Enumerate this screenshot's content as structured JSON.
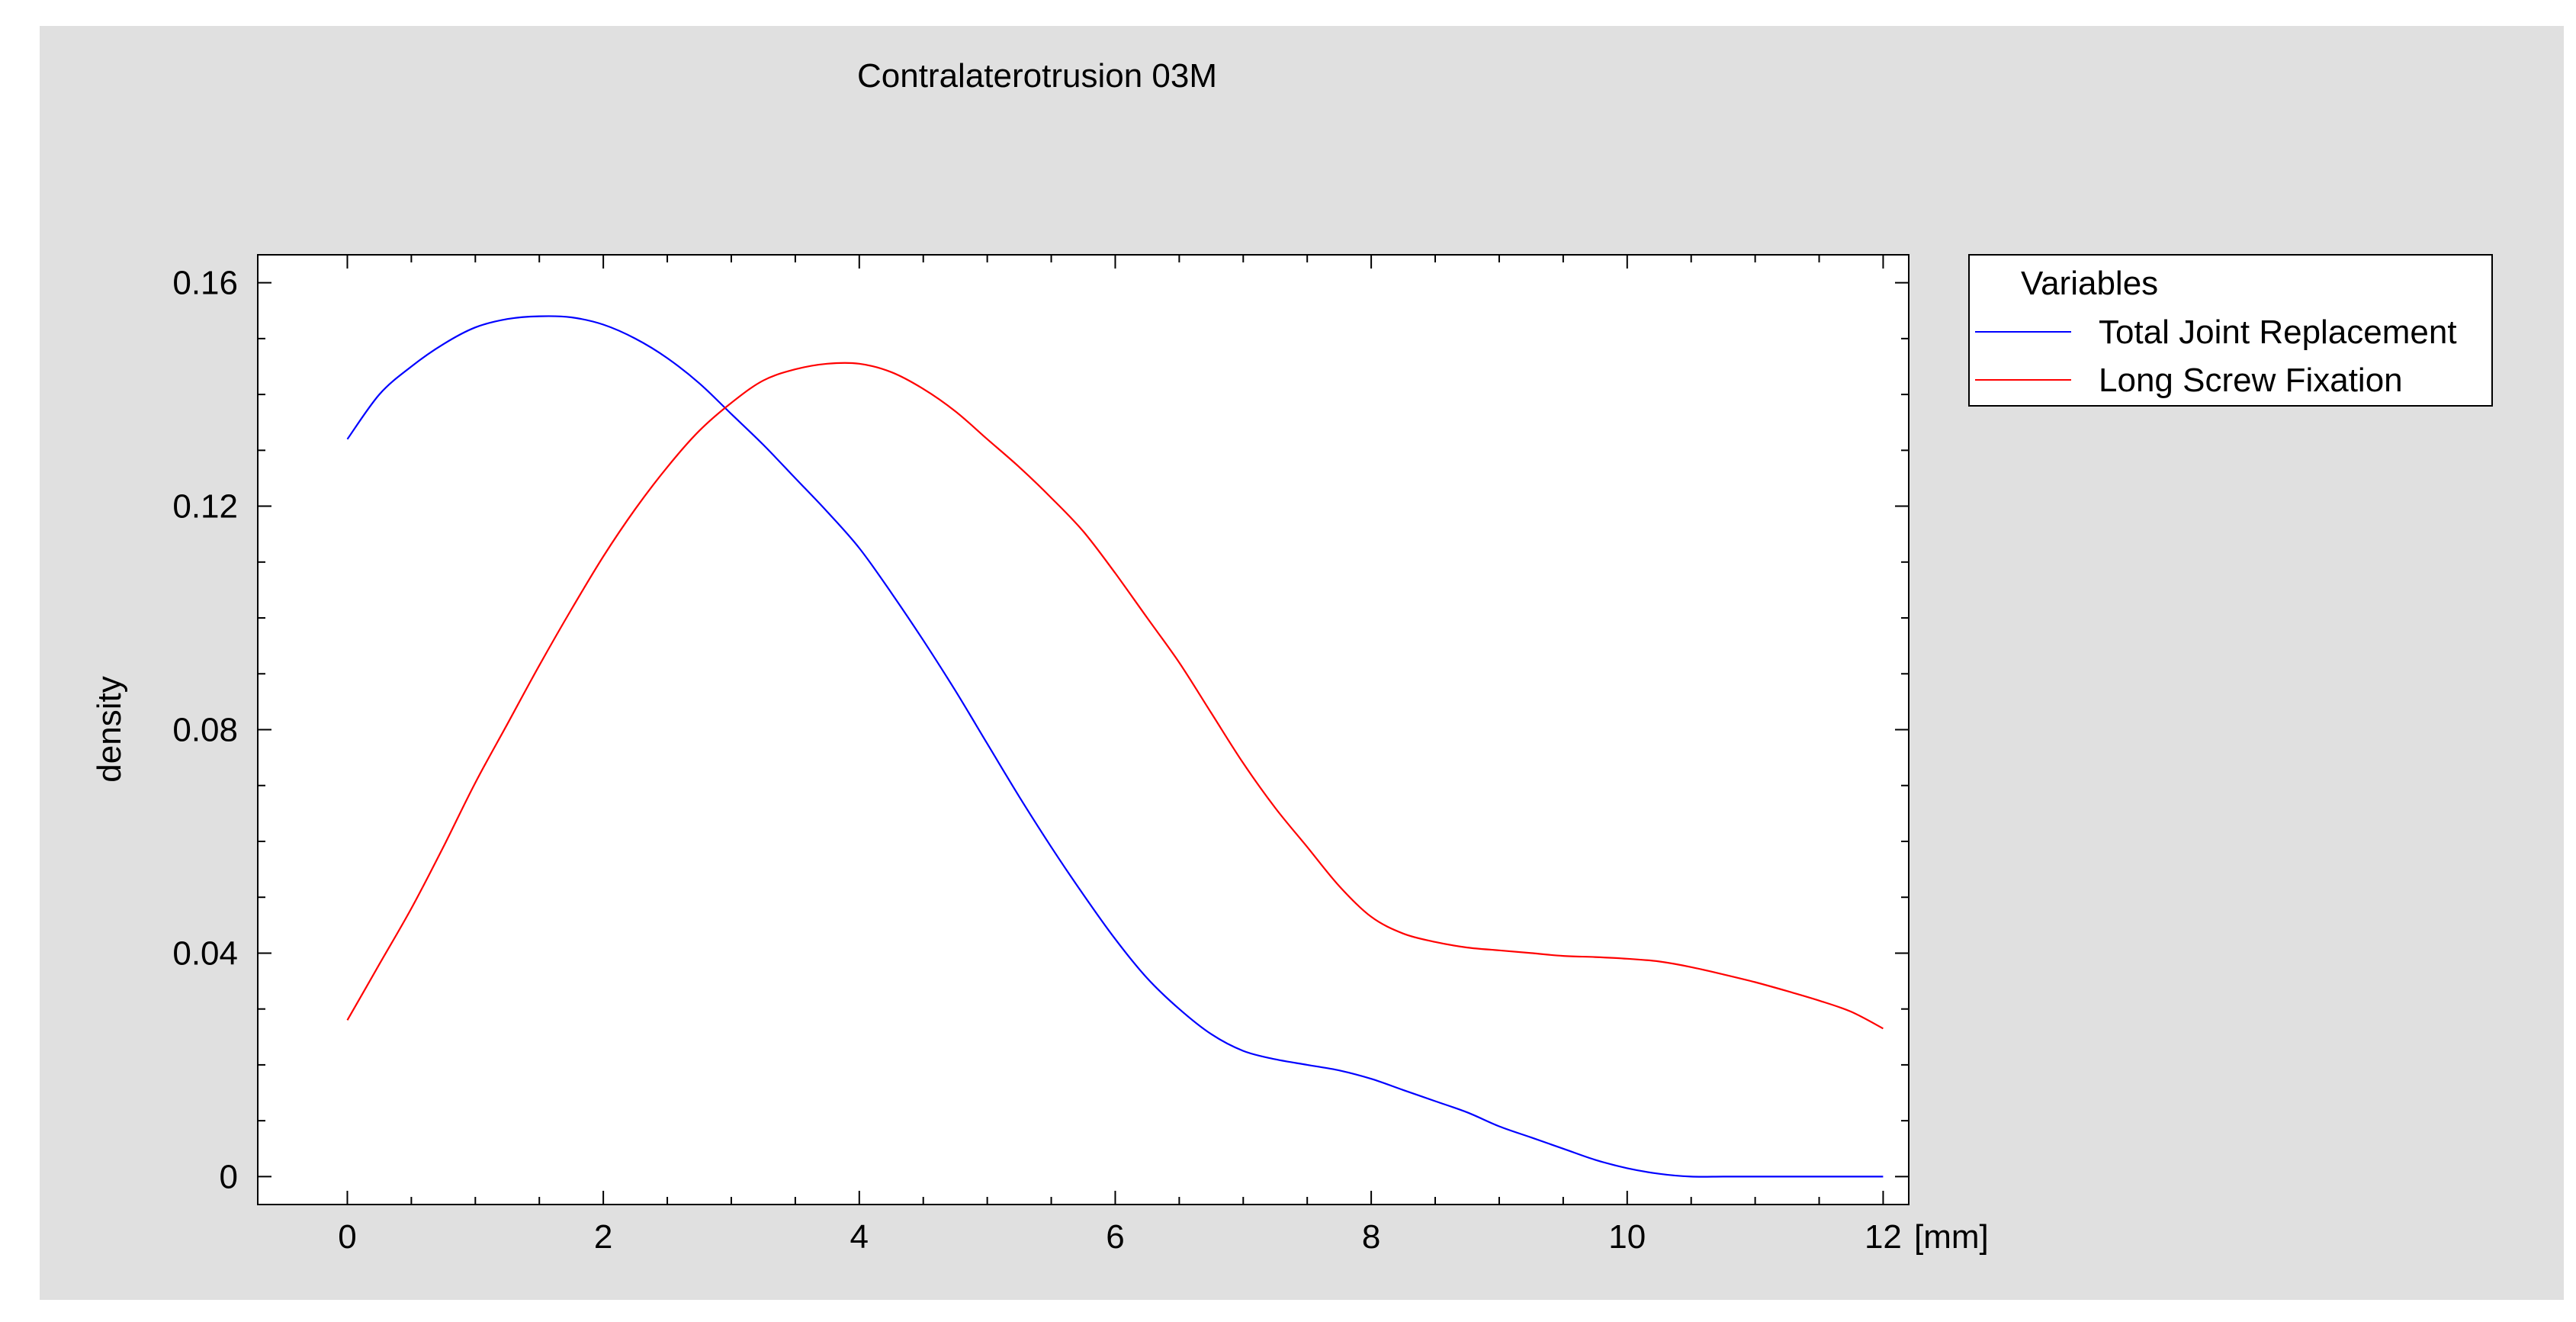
{
  "chart_data": {
    "type": "line",
    "title": "Contralaterotrusion 03M",
    "ylabel": "density",
    "x_unit": "[mm]",
    "xlim": [
      -0.7,
      12.2
    ],
    "ylim": [
      -0.005,
      0.165
    ],
    "x_ticks": [
      0,
      2,
      4,
      6,
      8,
      10,
      12
    ],
    "x_tick_labels": [
      "0",
      "2",
      "4",
      "6",
      "8",
      "10",
      "12"
    ],
    "y_ticks": [
      0,
      0.04,
      0.08,
      0.12,
      0.16
    ],
    "y_tick_labels": [
      "0",
      "0.04",
      "0.08",
      "0.12",
      "0.16"
    ],
    "grid": false,
    "legend": {
      "title": "Variables",
      "placement": "right"
    },
    "series": [
      {
        "name": "Total Joint Replacement",
        "color": "#0000ff",
        "x": [
          0,
          0.25,
          0.5,
          0.75,
          1,
          1.25,
          1.5,
          1.75,
          2,
          2.25,
          2.5,
          2.75,
          3,
          3.25,
          3.5,
          3.75,
          4,
          4.25,
          4.5,
          4.75,
          5,
          5.25,
          5.5,
          5.75,
          6,
          6.25,
          6.5,
          6.75,
          7,
          7.25,
          7.5,
          7.75,
          8,
          8.25,
          8.5,
          8.75,
          9,
          9.25,
          9.5,
          9.75,
          10,
          10.25,
          10.5,
          10.75,
          11,
          11.5,
          12
        ],
        "y": [
          0.132,
          0.14,
          0.145,
          0.149,
          0.152,
          0.1535,
          0.154,
          0.1538,
          0.1525,
          0.15,
          0.1465,
          0.142,
          0.1365,
          0.131,
          0.125,
          0.119,
          0.1125,
          0.1045,
          0.096,
          0.087,
          0.0775,
          0.068,
          0.059,
          0.0505,
          0.0425,
          0.0355,
          0.03,
          0.0255,
          0.0225,
          0.021,
          0.02,
          0.019,
          0.0175,
          0.0155,
          0.0135,
          0.0115,
          0.009,
          0.007,
          0.005,
          0.003,
          0.0015,
          0.0005,
          0,
          0,
          0,
          0,
          0
        ]
      },
      {
        "name": "Long Screw Fixation",
        "color": "#ff0000",
        "x": [
          0,
          0.25,
          0.5,
          0.75,
          1,
          1.25,
          1.5,
          1.75,
          2,
          2.25,
          2.5,
          2.75,
          3,
          3.25,
          3.5,
          3.75,
          4,
          4.25,
          4.5,
          4.75,
          5,
          5.25,
          5.5,
          5.75,
          6,
          6.25,
          6.5,
          6.75,
          7,
          7.25,
          7.5,
          7.75,
          8,
          8.25,
          8.5,
          8.75,
          9,
          9.25,
          9.5,
          9.75,
          10,
          10.25,
          10.5,
          10.75,
          11,
          11.25,
          11.5,
          11.75,
          12
        ],
        "y": [
          0.028,
          0.038,
          0.048,
          0.059,
          0.0705,
          0.081,
          0.0915,
          0.1015,
          0.111,
          0.1195,
          0.127,
          0.1335,
          0.1385,
          0.1425,
          0.1445,
          0.1455,
          0.1455,
          0.144,
          0.141,
          0.137,
          0.132,
          0.127,
          0.1215,
          0.1155,
          0.108,
          0.1,
          0.092,
          0.083,
          0.074,
          0.066,
          0.059,
          0.052,
          0.0465,
          0.0435,
          0.042,
          0.041,
          0.0405,
          0.04,
          0.0395,
          0.0393,
          0.039,
          0.0385,
          0.0375,
          0.0362,
          0.0348,
          0.0332,
          0.0315,
          0.0295,
          0.0265
        ]
      }
    ]
  }
}
